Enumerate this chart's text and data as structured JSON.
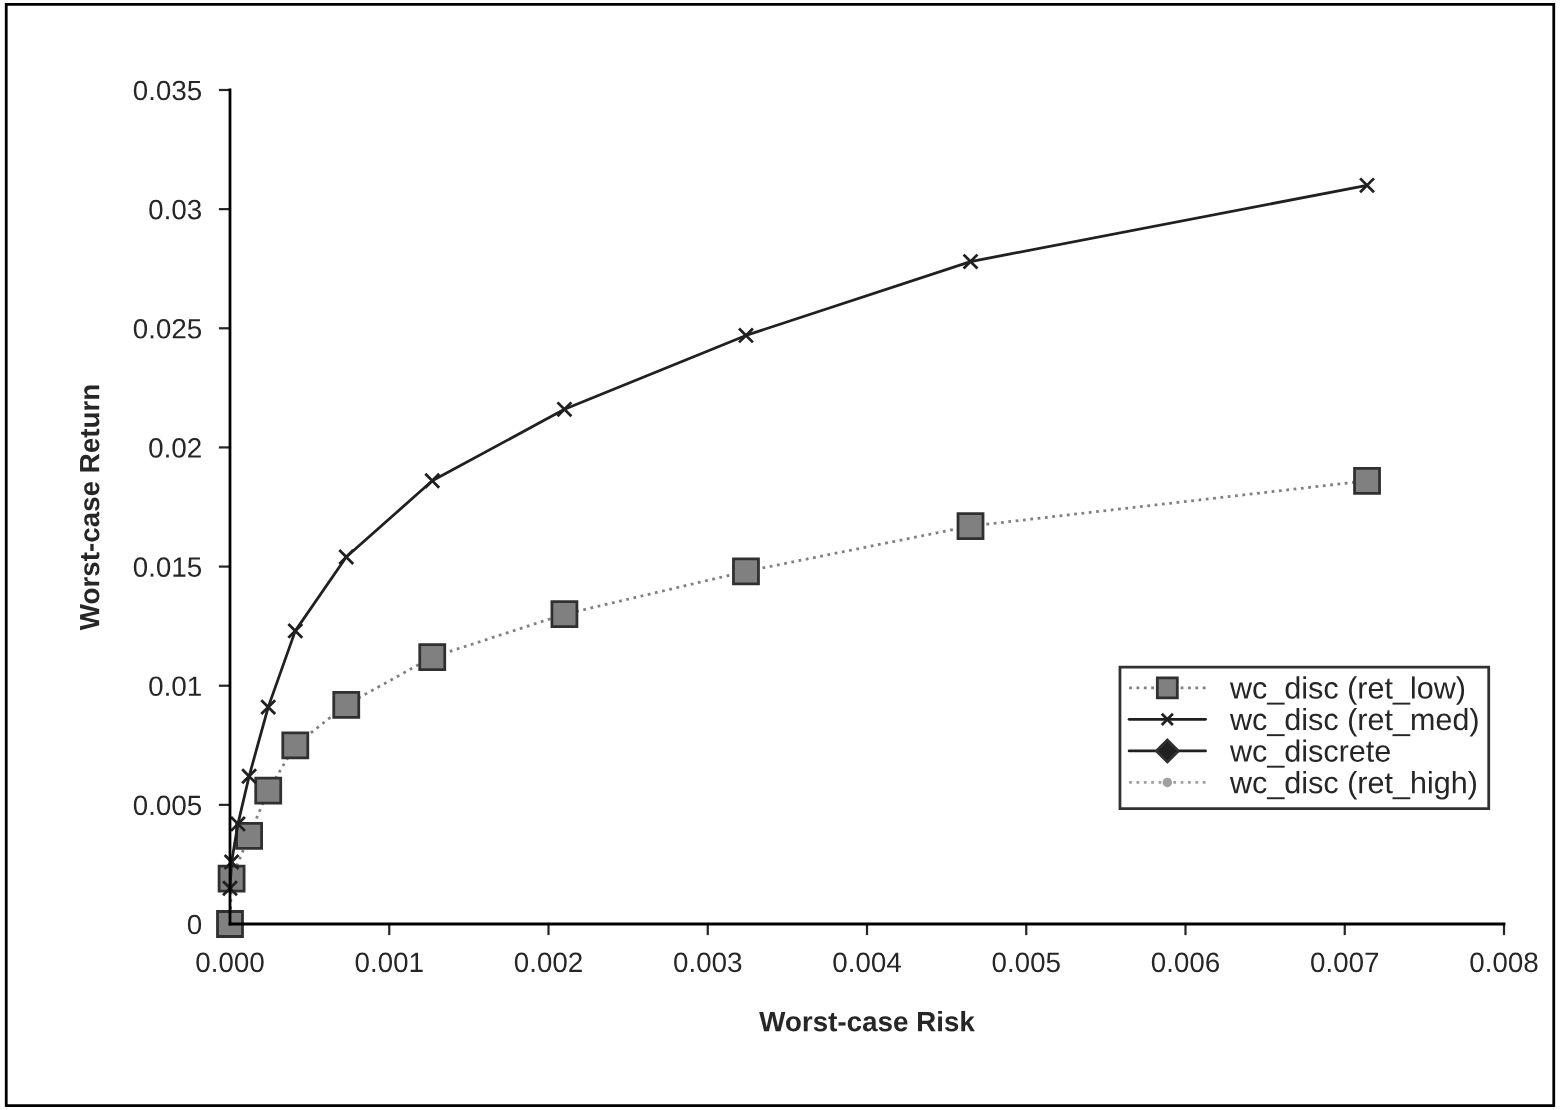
{
  "chart_data": {
    "type": "line",
    "xlabel": "Worst-case Risk",
    "ylabel": "Worst-case Return",
    "xlim": [
      0,
      0.008
    ],
    "xticks": [
      {
        "value": 0,
        "label": "0.000"
      },
      {
        "value": 0.001,
        "label": "0.001"
      },
      {
        "value": 0.002,
        "label": "0.002"
      },
      {
        "value": 0.003,
        "label": "0.003"
      },
      {
        "value": 0.004,
        "label": "0.004"
      },
      {
        "value": 0.005,
        "label": "0.005"
      },
      {
        "value": 0.006,
        "label": "0.006"
      },
      {
        "value": 0.007,
        "label": "0.007"
      },
      {
        "value": 0.008,
        "label": "0.008"
      }
    ],
    "ylim": [
      0,
      0.035
    ],
    "yticks": [
      0,
      0.005,
      0.01,
      0.015,
      0.02,
      0.025,
      0.03,
      0.035
    ],
    "grid": false,
    "legend": "right",
    "series": [
      {
        "name": "wc_disc (ret_low)",
        "color": "#808080",
        "marker": "square",
        "line_style": "dotted",
        "x": [
          0,
          1e-05,
          0.00012,
          0.00024,
          0.00041,
          0.00073,
          0.00127,
          0.0021,
          0.00324,
          0.00465,
          0.00714
        ],
        "values": [
          0,
          0.0019,
          0.0037,
          0.0056,
          0.0075,
          0.0092,
          0.0112,
          0.013,
          0.0148,
          0.0167,
          0.0186
        ]
      },
      {
        "name": "wc_disc (ret_med)",
        "color": "#202020",
        "marker": "cross",
        "line_style": "solid",
        "x": [
          0,
          1e-05,
          5e-05,
          0.00012,
          0.00024,
          0.00041,
          0.00073,
          0.00127,
          0.0021,
          0.00324,
          0.00465,
          0.00714
        ],
        "values": [
          0.0015,
          0.0026,
          0.0042,
          0.0062,
          0.0091,
          0.0123,
          0.0154,
          0.0186,
          0.0216,
          0.0247,
          0.0278,
          0.031
        ]
      },
      {
        "name": "wc_discrete",
        "color": "#202020",
        "marker": "diamond",
        "line_style": "solid"
      },
      {
        "name": "wc_disc (ret_high)",
        "color": "#a0a0a0",
        "marker": "circle",
        "line_style": "dotted"
      }
    ]
  }
}
